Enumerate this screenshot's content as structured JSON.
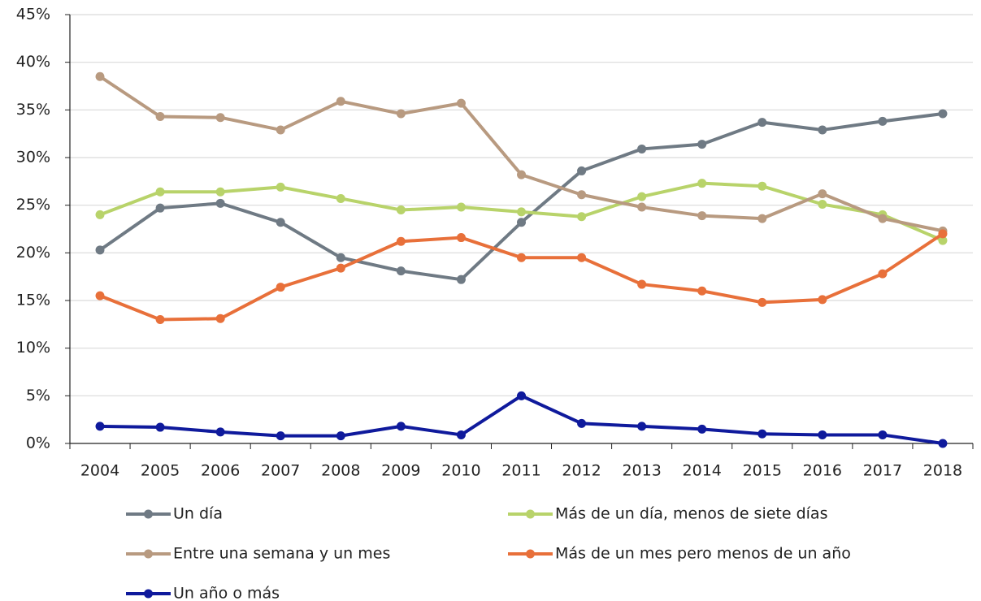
{
  "chart_data": {
    "type": "line",
    "categories": [
      "2004",
      "2005",
      "2006",
      "2007",
      "2008",
      "2009",
      "2010",
      "2011",
      "2012",
      "2013",
      "2014",
      "2015",
      "2016",
      "2017",
      "2018"
    ],
    "series": [
      {
        "name": "Un día",
        "color": "#6f7a84",
        "values": [
          20.3,
          24.7,
          25.2,
          23.2,
          19.5,
          18.1,
          17.2,
          23.2,
          28.6,
          30.9,
          31.4,
          33.7,
          32.9,
          33.8,
          34.6
        ]
      },
      {
        "name": "Más de un día, menos de siete días",
        "color": "#b8d36a",
        "values": [
          24.0,
          26.4,
          26.4,
          26.9,
          25.7,
          24.5,
          24.8,
          24.3,
          23.8,
          25.9,
          27.3,
          27.0,
          25.1,
          24.0,
          21.3
        ]
      },
      {
        "name": "Entre una semana y un mes",
        "color": "#b89a80",
        "values": [
          38.5,
          34.3,
          34.2,
          32.9,
          35.9,
          34.6,
          35.7,
          28.2,
          26.1,
          24.8,
          23.9,
          23.6,
          26.2,
          23.6,
          22.3
        ]
      },
      {
        "name": "Más de un mes pero menos de un año",
        "color": "#e8703a",
        "values": [
          15.5,
          13.0,
          13.1,
          16.4,
          18.4,
          21.2,
          21.6,
          19.5,
          19.5,
          16.7,
          16.0,
          14.8,
          15.1,
          17.8,
          22.0
        ]
      },
      {
        "name": "Un año o más",
        "color": "#0f1a9c",
        "values": [
          1.8,
          1.7,
          1.2,
          0.8,
          0.8,
          1.8,
          0.9,
          5.0,
          2.1,
          1.8,
          1.5,
          1.0,
          0.9,
          0.9,
          0.0
        ]
      }
    ],
    "ylim": [
      0,
      45
    ],
    "yticks": [
      {
        "value": 0,
        "label": "0%"
      },
      {
        "value": 5,
        "label": "5%"
      },
      {
        "value": 10,
        "label": "10%"
      },
      {
        "value": 15,
        "label": "15%"
      },
      {
        "value": 20,
        "label": "20%"
      },
      {
        "value": 25,
        "label": "25%"
      },
      {
        "value": 30,
        "label": "30%"
      },
      {
        "value": 35,
        "label": "35%"
      },
      {
        "value": 40,
        "label": "40%"
      },
      {
        "value": 45,
        "label": "45%"
      }
    ],
    "grid": true,
    "legend": "bottom"
  }
}
